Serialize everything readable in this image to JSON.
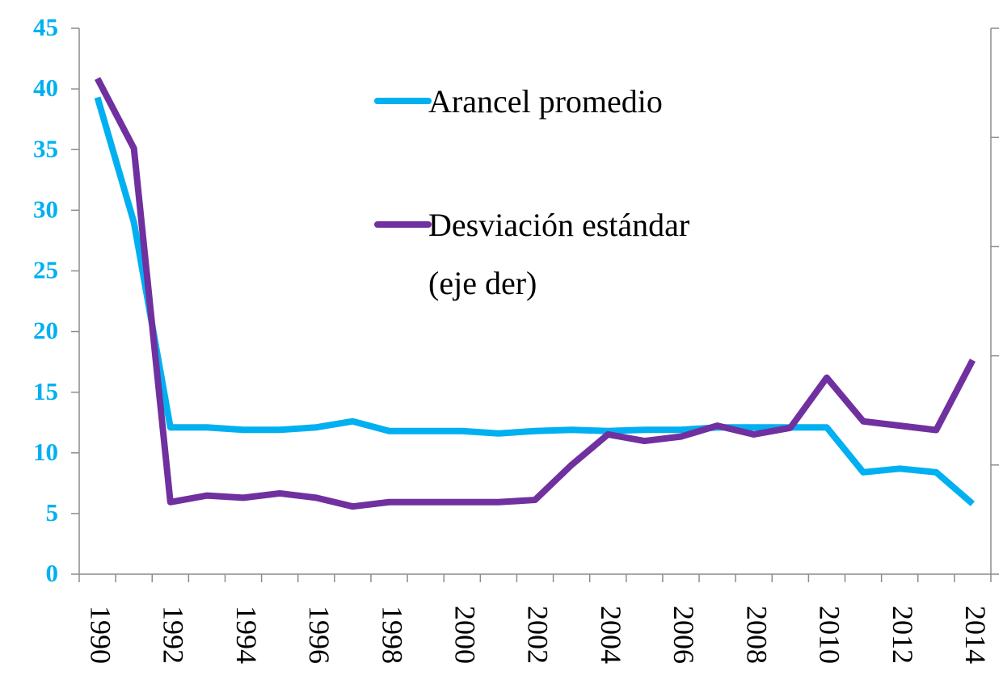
{
  "chart_data": {
    "type": "line",
    "categories": [
      "1990",
      null,
      "1992",
      null,
      "1994",
      null,
      "1996",
      null,
      "1998",
      null,
      "2000",
      null,
      "2002",
      null,
      "2004",
      null,
      "2006",
      null,
      "2008",
      null,
      "2010",
      null,
      "2012",
      null,
      "2014"
    ],
    "series": [
      {
        "name": "Arancel promedio",
        "color": "#00b0f0",
        "values": [
          39.3,
          29,
          12.1,
          12.1,
          11.9,
          11.9,
          12.1,
          12.6,
          11.8,
          11.8,
          11.8,
          11.6,
          11.8,
          11.9,
          11.8,
          11.9,
          11.9,
          12.1,
          12.1,
          12.1,
          12.1,
          8.4,
          8.7,
          8.4,
          5.8
        ]
      },
      {
        "name": "Desviación estándar (eje der)",
        "color": "#7030a0",
        "axis": "y2",
        "values": [
          22.7,
          19.5,
          3.3,
          3.6,
          3.5,
          3.7,
          3.5,
          3.1,
          3.3,
          3.3,
          3.3,
          3.3,
          3.4,
          5.0,
          6.4,
          6.1,
          6.3,
          6.8,
          6.4,
          6.7,
          9.0,
          7.0,
          6.8,
          6.6,
          9.8
        ]
      }
    ],
    "ylim": [
      0,
      45
    ],
    "yticks": [
      0,
      5,
      10,
      15,
      20,
      25,
      30,
      35,
      40,
      45
    ],
    "y2lim": [
      0,
      25
    ],
    "y2ticks": [
      0,
      5,
      10,
      15,
      20,
      25
    ]
  }
}
